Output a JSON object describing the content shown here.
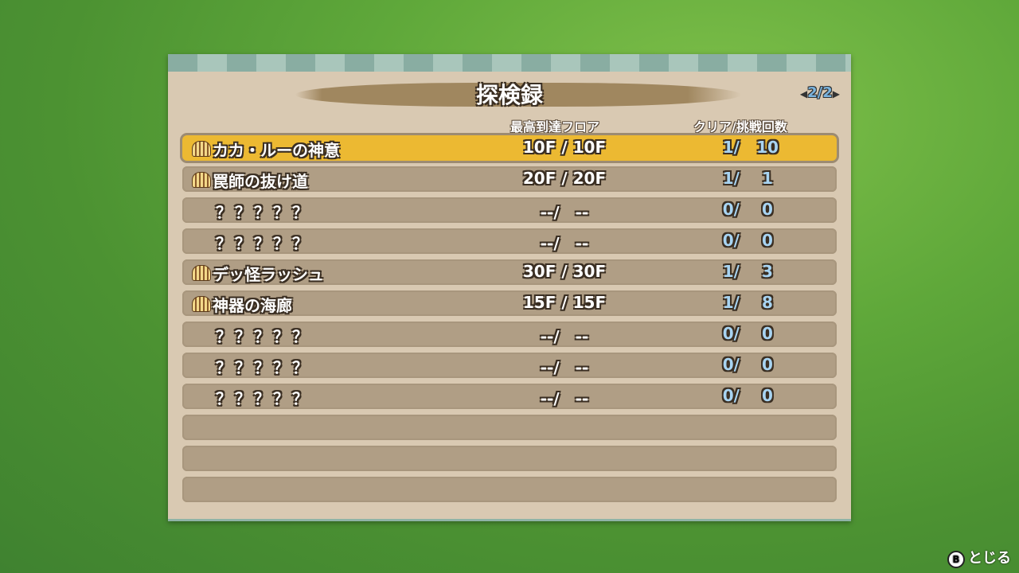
{
  "title": "探検録",
  "page": {
    "current": "2",
    "total": "2"
  },
  "headers": {
    "floor": "最高到達フロア",
    "clear": "クリア/挑戦回数"
  },
  "rows": [
    {
      "name": "カカ・ルーの神意",
      "floor": "10F / 10F",
      "clear": "1/",
      "tries": "10",
      "icon": "bread-icon",
      "selected": true
    },
    {
      "name": "罠師の抜け道",
      "floor": "20F / 20F",
      "clear": "1/",
      "tries": "1",
      "icon": "bread-icon"
    },
    {
      "name": "？？？？？",
      "floor": "--/　--",
      "clear": "0/",
      "tries": "0"
    },
    {
      "name": "？？？？？",
      "floor": "--/　--",
      "clear": "0/",
      "tries": "0"
    },
    {
      "name": "デッ怪ラッシュ",
      "floor": "30F / 30F",
      "clear": "1/",
      "tries": "3",
      "icon": "bread-icon"
    },
    {
      "name": "神器の海廊",
      "floor": "15F / 15F",
      "clear": "1/",
      "tries": "8",
      "icon": "bread-icon"
    },
    {
      "name": "？？？？？",
      "floor": "--/　--",
      "clear": "0/",
      "tries": "0"
    },
    {
      "name": "？？？？？",
      "floor": "--/　--",
      "clear": "0/",
      "tries": "0"
    },
    {
      "name": "？？？？？",
      "floor": "--/　--",
      "clear": "0/",
      "tries": "0"
    }
  ],
  "empty_rows": 3,
  "footer": {
    "button": "B",
    "label": "とじる"
  },
  "colors": {
    "selected": "#ecb932",
    "row": "#b09e85",
    "panel": "#d9c9b2"
  }
}
